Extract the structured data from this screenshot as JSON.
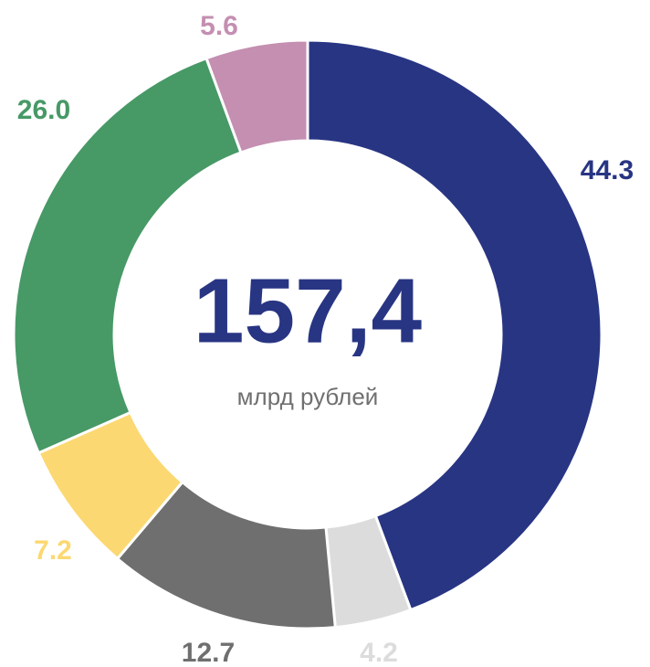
{
  "chart_data": {
    "type": "pie",
    "series": [
      {
        "values": [
          44.3,
          4.2,
          12.7,
          7.2,
          26.0,
          5.6
        ],
        "value_labels": [
          "44.3",
          "4.2",
          "12.7",
          "7.2",
          "26.0",
          "5.6"
        ],
        "colors": [
          "#283583",
          "#dcdcdc",
          "#6f6f6f",
          "#fcd872",
          "#479966",
          "#c48fb1"
        ]
      }
    ],
    "center_value": "157,4",
    "center_label": "млрд рублей"
  }
}
